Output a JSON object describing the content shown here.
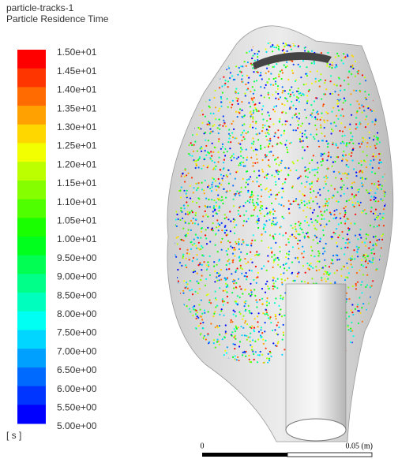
{
  "header": {
    "title": "particle-tracks-1",
    "subtitle": "Particle Residence Time"
  },
  "colorbar": {
    "labels": [
      "1.50e+01",
      "1.45e+01",
      "1.40e+01",
      "1.35e+01",
      "1.30e+01",
      "1.25e+01",
      "1.20e+01",
      "1.15e+01",
      "1.10e+01",
      "1.05e+01",
      "1.00e+01",
      "9.50e+00",
      "9.00e+00",
      "8.50e+00",
      "8.00e+00",
      "7.50e+00",
      "7.00e+00",
      "6.50e+00",
      "6.00e+00",
      "5.50e+00",
      "5.00e+00"
    ],
    "colors": [
      "#ff0000",
      "#ff3500",
      "#ff6b00",
      "#ffa100",
      "#ffd700",
      "#f1ff00",
      "#bbff00",
      "#85ff00",
      "#4fff00",
      "#1aff00",
      "#00ff1c",
      "#00ff52",
      "#00ff88",
      "#00ffbe",
      "#00fff3",
      "#00d6ff",
      "#00a0ff",
      "#006aff",
      "#0034ff",
      "#0000ff"
    ],
    "unit": "[ s ]"
  },
  "scale_bar": {
    "start_label": "0",
    "end_label": "0.05 (m)"
  }
}
